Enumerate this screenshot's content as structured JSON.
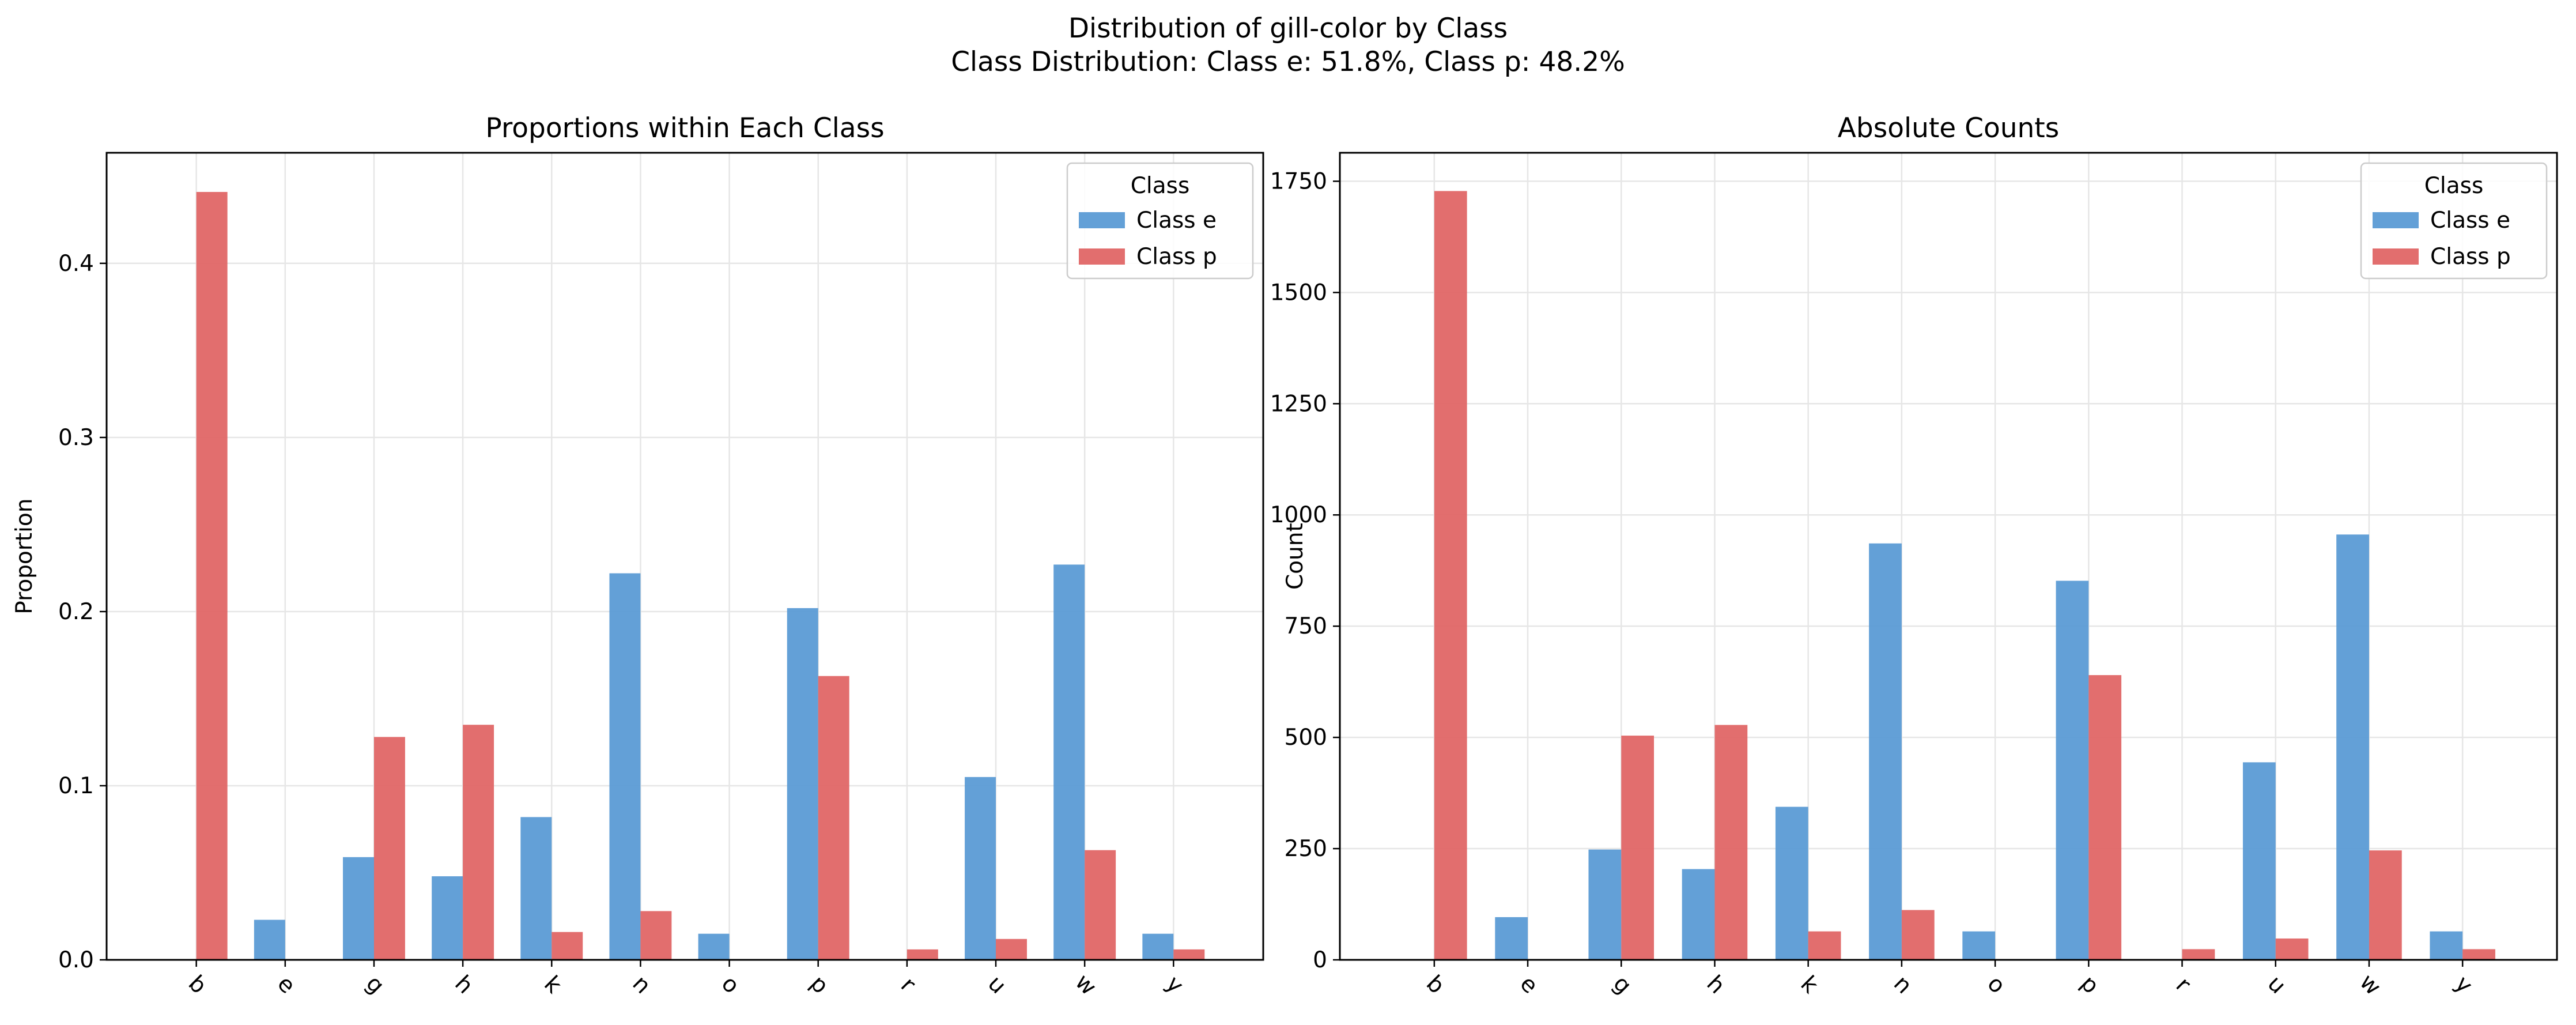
{
  "suptitle": {
    "line1": "Distribution of gill-color by Class",
    "line2": "Class Distribution: Class e: 51.8%, Class p: 48.2%"
  },
  "colors": {
    "class_e": "#5b9bd5",
    "class_p": "#e06666",
    "grid": "#e6e6e6"
  },
  "chart_data": [
    {
      "type": "bar",
      "title": "Proportions within Each Class",
      "xlabel": "",
      "ylabel": "Proportion",
      "categories": [
        "b",
        "e",
        "g",
        "h",
        "k",
        "n",
        "o",
        "p",
        "r",
        "u",
        "w",
        "y"
      ],
      "series": [
        {
          "name": "Class e",
          "values": [
            0.0,
            0.023,
            0.059,
            0.048,
            0.082,
            0.222,
            0.015,
            0.202,
            0.0,
            0.105,
            0.227,
            0.015
          ]
        },
        {
          "name": "Class p",
          "values": [
            0.441,
            0.0,
            0.128,
            0.135,
            0.016,
            0.028,
            0.0,
            0.163,
            0.006,
            0.012,
            0.063,
            0.006
          ]
        }
      ],
      "ylim": [
        0,
        0.4635
      ],
      "yticks": [
        0.0,
        0.1,
        0.2,
        0.3,
        0.4
      ],
      "ytick_labels": [
        "0.0",
        "0.1",
        "0.2",
        "0.3",
        "0.4"
      ],
      "legend": {
        "title": "Class",
        "placement": "top-right"
      },
      "grid": true
    },
    {
      "type": "bar",
      "title": "Absolute Counts",
      "xlabel": "",
      "ylabel": "Count",
      "categories": [
        "b",
        "e",
        "g",
        "h",
        "k",
        "n",
        "o",
        "p",
        "r",
        "u",
        "w",
        "y"
      ],
      "series": [
        {
          "name": "Class e",
          "values": [
            0,
            96,
            248,
            204,
            344,
            936,
            64,
            852,
            0,
            444,
            956,
            64
          ]
        },
        {
          "name": "Class p",
          "values": [
            1728,
            0,
            504,
            528,
            64,
            112,
            0,
            640,
            24,
            48,
            246,
            24
          ]
        }
      ],
      "ylim": [
        0,
        1814
      ],
      "yticks": [
        0,
        250,
        500,
        750,
        1000,
        1250,
        1500,
        1750
      ],
      "ytick_labels": [
        "0",
        "250",
        "500",
        "750",
        "1000",
        "1250",
        "1500",
        "1750"
      ],
      "legend": {
        "title": "Class",
        "placement": "top-right"
      },
      "grid": true
    }
  ]
}
